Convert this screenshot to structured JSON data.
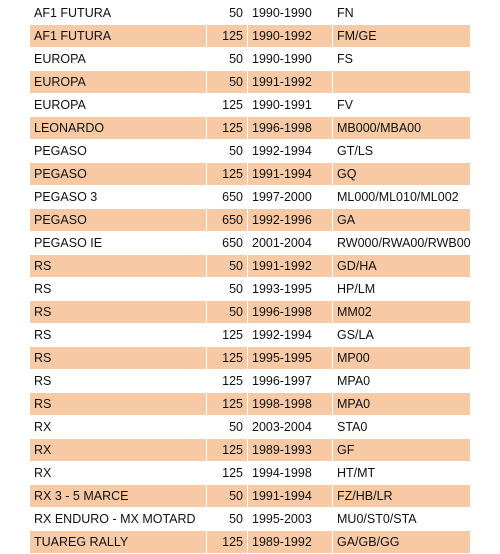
{
  "colors": {
    "shaded_row": "#f7c9a4",
    "plain_row": "#ffffff"
  },
  "rows": [
    {
      "model": "AF1 FUTURA",
      "cc": "50",
      "years": "1990-1990",
      "code": "FN",
      "shaded": false
    },
    {
      "model": "AF1 FUTURA",
      "cc": "125",
      "years": "1990-1992",
      "code": "FM/GE",
      "shaded": true
    },
    {
      "model": "EUROPA",
      "cc": "50",
      "years": "1990-1990",
      "code": "FS",
      "shaded": false
    },
    {
      "model": "EUROPA",
      "cc": "50",
      "years": "1991-1992",
      "code": "",
      "shaded": true
    },
    {
      "model": "EUROPA",
      "cc": "125",
      "years": "1990-1991",
      "code": "FV",
      "shaded": false
    },
    {
      "model": "LEONARDO",
      "cc": "125",
      "years": "1996-1998",
      "code": "MB000/MBA00",
      "shaded": true
    },
    {
      "model": "PEGASO",
      "cc": "50",
      "years": "1992-1994",
      "code": "GT/LS",
      "shaded": false
    },
    {
      "model": "PEGASO",
      "cc": "125",
      "years": "1991-1994",
      "code": "GQ",
      "shaded": true
    },
    {
      "model": "PEGASO 3",
      "cc": "650",
      "years": "1997-2000",
      "code": "ML000/ML010/ML002",
      "shaded": false
    },
    {
      "model": "PEGASO",
      "cc": "650",
      "years": "1992-1996",
      "code": "GA",
      "shaded": true
    },
    {
      "model": "PEGASO IE",
      "cc": "650",
      "years": "2001-2004",
      "code": "RW000/RWA00/RWB00",
      "shaded": false
    },
    {
      "model": "RS",
      "cc": "50",
      "years": "1991-1992",
      "code": "GD/HA",
      "shaded": true
    },
    {
      "model": "RS",
      "cc": "50",
      "years": "1993-1995",
      "code": "HP/LM",
      "shaded": false
    },
    {
      "model": "RS",
      "cc": "50",
      "years": "1996-1998",
      "code": "MM02",
      "shaded": true
    },
    {
      "model": "RS",
      "cc": "125",
      "years": "1992-1994",
      "code": "GS/LA",
      "shaded": false
    },
    {
      "model": "RS",
      "cc": "125",
      "years": "1995-1995",
      "code": "MP00",
      "shaded": true
    },
    {
      "model": "RS",
      "cc": "125",
      "years": "1996-1997",
      "code": "MPA0",
      "shaded": false
    },
    {
      "model": "RS",
      "cc": "125",
      "years": "1998-1998",
      "code": "MPA0",
      "shaded": true
    },
    {
      "model": "RX",
      "cc": "50",
      "years": "2003-2004",
      "code": "STA0",
      "shaded": false
    },
    {
      "model": "RX",
      "cc": "125",
      "years": "1989-1993",
      "code": "GF",
      "shaded": true
    },
    {
      "model": "RX",
      "cc": "125",
      "years": "1994-1998",
      "code": "HT/MT",
      "shaded": false
    },
    {
      "model": "RX 3 - 5 MARCE",
      "cc": "50",
      "years": "1991-1994",
      "code": "FZ/HB/LR",
      "shaded": true
    },
    {
      "model": "RX ENDURO - MX MOTARD",
      "cc": "50",
      "years": "1995-2003",
      "code": "MU0/ST0/STA",
      "shaded": false
    },
    {
      "model": "TUAREG RALLY",
      "cc": "125",
      "years": "1989-1992",
      "code": "GA/GB/GG",
      "shaded": true
    }
  ]
}
